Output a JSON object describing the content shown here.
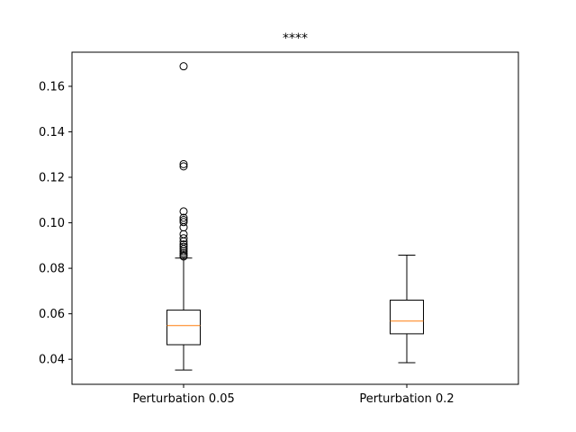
{
  "chart_data": {
    "type": "box",
    "title": "****",
    "xlabel": "",
    "ylabel": "",
    "ylim": [
      0.029,
      0.175
    ],
    "yticks": [
      0.04,
      0.06,
      0.08,
      0.1,
      0.12,
      0.14,
      0.16
    ],
    "ytick_labels": [
      "0.04",
      "0.06",
      "0.08",
      "0.10",
      "0.12",
      "0.14",
      "0.16"
    ],
    "categories": [
      "Perturbation 0.05",
      "Perturbation 0.2"
    ],
    "boxes": [
      {
        "label": "Perturbation 0.05",
        "whisker_low": 0.0353,
        "q1": 0.0464,
        "median": 0.0548,
        "q3": 0.0616,
        "whisker_high": 0.0845,
        "outliers": [
          0.0852,
          0.0858,
          0.0866,
          0.0875,
          0.0885,
          0.0895,
          0.0905,
          0.0918,
          0.0932,
          0.095,
          0.098,
          0.1003,
          0.1012,
          0.1022,
          0.105,
          0.1248,
          0.1258,
          0.1688
        ]
      },
      {
        "label": "Perturbation 0.2",
        "whisker_low": 0.0385,
        "q1": 0.0512,
        "median": 0.0568,
        "q3": 0.066,
        "whisker_high": 0.0858,
        "outliers": []
      }
    ],
    "colors": {
      "box": "#000000",
      "median": "#ff7f0e",
      "outlier_edge": "#000000"
    },
    "grid": false
  }
}
